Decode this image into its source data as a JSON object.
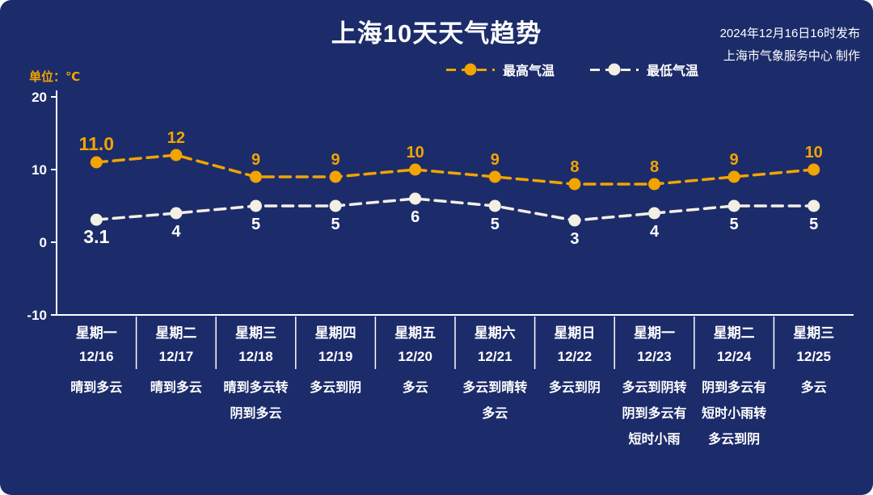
{
  "header": {
    "title": "上海10天天气趋势",
    "publish_time": "2024年12月16日16时发布",
    "publish_source": "上海市气象服务中心 制作"
  },
  "legend": {
    "high_label": "最高气温",
    "low_label": "最低气温"
  },
  "colors": {
    "background": "#1c2c6a",
    "high_temp": "#f2a400",
    "low_temp": "#f3efe4",
    "axis": "#ffffff",
    "text": "#ffffff"
  },
  "chart_data": {
    "type": "line",
    "title": "上海10天天气趋势",
    "ylabel": "单位：℃",
    "ylim": [
      -10,
      20
    ],
    "yticks": [
      20,
      10,
      0,
      -10
    ],
    "grid": false,
    "legend_position": "top",
    "line_style": "dashed",
    "categories": [
      {
        "week": "星期一",
        "date": "12/16",
        "weather": [
          "晴到多云"
        ]
      },
      {
        "week": "星期二",
        "date": "12/17",
        "weather": [
          "晴到多云"
        ]
      },
      {
        "week": "星期三",
        "date": "12/18",
        "weather": [
          "晴到多云转",
          "阴到多云"
        ]
      },
      {
        "week": "星期四",
        "date": "12/19",
        "weather": [
          "多云到阴"
        ]
      },
      {
        "week": "星期五",
        "date": "12/20",
        "weather": [
          "多云"
        ]
      },
      {
        "week": "星期六",
        "date": "12/21",
        "weather": [
          "多云到晴转",
          "多云"
        ]
      },
      {
        "week": "星期日",
        "date": "12/22",
        "weather": [
          "多云到阴"
        ]
      },
      {
        "week": "星期一",
        "date": "12/23",
        "weather": [
          "多云到阴转",
          "阴到多云有",
          "短时小雨"
        ]
      },
      {
        "week": "星期二",
        "date": "12/24",
        "weather": [
          "阴到多云有",
          "短时小雨转",
          "多云到阴"
        ]
      },
      {
        "week": "星期三",
        "date": "12/25",
        "weather": [
          "多云"
        ]
      }
    ],
    "series": [
      {
        "name": "最高气温",
        "color": "#f2a400",
        "label_position": "above",
        "label_color": "#f2a400",
        "values": [
          11.0,
          12,
          9,
          9,
          10,
          9,
          8,
          8,
          9,
          10
        ],
        "labels": [
          "11.0",
          "12",
          "9",
          "9",
          "10",
          "9",
          "8",
          "8",
          "9",
          "10"
        ]
      },
      {
        "name": "最低气温",
        "color": "#f3efe4",
        "label_position": "below",
        "label_color": "#ffffff",
        "values": [
          3.1,
          4,
          5,
          5,
          6,
          5,
          3,
          4,
          5,
          5
        ],
        "labels": [
          "3.1",
          "4",
          "5",
          "5",
          "6",
          "5",
          "3",
          "4",
          "5",
          "5"
        ]
      }
    ]
  }
}
